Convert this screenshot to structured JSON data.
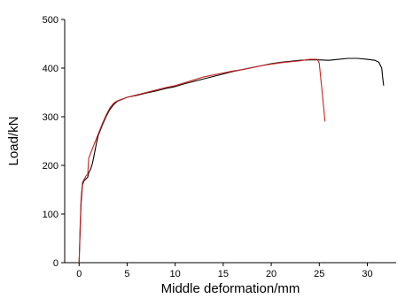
{
  "chart_data": {
    "type": "line",
    "xlabel": "Middle deformation/mm",
    "ylabel": "Load/kN",
    "xlim": [
      -1.5,
      33
    ],
    "ylim": [
      0,
      500
    ],
    "x_ticks": [
      0,
      5,
      10,
      15,
      20,
      25,
      30
    ],
    "y_ticks": [
      0,
      100,
      200,
      300,
      400,
      500
    ],
    "grid": false,
    "legend": "none",
    "series": [
      {
        "color": "#000000",
        "points": [
          [
            0,
            0
          ],
          [
            0.1,
            60
          ],
          [
            0.2,
            120
          ],
          [
            0.35,
            160
          ],
          [
            0.5,
            168
          ],
          [
            0.7,
            172
          ],
          [
            0.9,
            176
          ],
          [
            1.0,
            185
          ],
          [
            1.2,
            192
          ],
          [
            1.4,
            205
          ],
          [
            1.6,
            225
          ],
          [
            1.8,
            245
          ],
          [
            2.0,
            262
          ],
          [
            2.4,
            282
          ],
          [
            2.8,
            300
          ],
          [
            3.2,
            315
          ],
          [
            3.6,
            325
          ],
          [
            4.0,
            332
          ],
          [
            4.5,
            336
          ],
          [
            5,
            340
          ],
          [
            6,
            344
          ],
          [
            7,
            349
          ],
          [
            8,
            353
          ],
          [
            9,
            358
          ],
          [
            10,
            362
          ],
          [
            11,
            368
          ],
          [
            12,
            373
          ],
          [
            13,
            378
          ],
          [
            14,
            383
          ],
          [
            15,
            388
          ],
          [
            16,
            393
          ],
          [
            17,
            397
          ],
          [
            18,
            401
          ],
          [
            19,
            405
          ],
          [
            20,
            409
          ],
          [
            21,
            412
          ],
          [
            22,
            414
          ],
          [
            23,
            416
          ],
          [
            24,
            417
          ],
          [
            25,
            417
          ],
          [
            26,
            416
          ],
          [
            27,
            418
          ],
          [
            28,
            420
          ],
          [
            29,
            420
          ],
          [
            30,
            418
          ],
          [
            30.8,
            416
          ],
          [
            31.2,
            412
          ],
          [
            31.5,
            400
          ],
          [
            31.6,
            380
          ],
          [
            31.7,
            364
          ]
        ]
      },
      {
        "color": "#cc2222",
        "points": [
          [
            0,
            0
          ],
          [
            0.1,
            70
          ],
          [
            0.2,
            130
          ],
          [
            0.35,
            165
          ],
          [
            0.5,
            170
          ],
          [
            0.7,
            178
          ],
          [
            0.9,
            182
          ],
          [
            1.0,
            215
          ],
          [
            1.2,
            225
          ],
          [
            1.4,
            235
          ],
          [
            1.6,
            245
          ],
          [
            1.8,
            255
          ],
          [
            2.0,
            265
          ],
          [
            2.4,
            285
          ],
          [
            2.8,
            303
          ],
          [
            3.2,
            318
          ],
          [
            3.6,
            328
          ],
          [
            4.0,
            333
          ],
          [
            5,
            340
          ],
          [
            6,
            345
          ],
          [
            7,
            350
          ],
          [
            8,
            355
          ],
          [
            9,
            360
          ],
          [
            10,
            364
          ],
          [
            11,
            370
          ],
          [
            12,
            376
          ],
          [
            13,
            382
          ],
          [
            14,
            386
          ],
          [
            15,
            390
          ],
          [
            16,
            394
          ],
          [
            17,
            397
          ],
          [
            18,
            401
          ],
          [
            19,
            405
          ],
          [
            20,
            408
          ],
          [
            21,
            411
          ],
          [
            22,
            413
          ],
          [
            23,
            415
          ],
          [
            24,
            418
          ],
          [
            24.8,
            418
          ],
          [
            25.0,
            410
          ],
          [
            25.1,
            390
          ],
          [
            25.6,
            290
          ]
        ]
      }
    ]
  }
}
